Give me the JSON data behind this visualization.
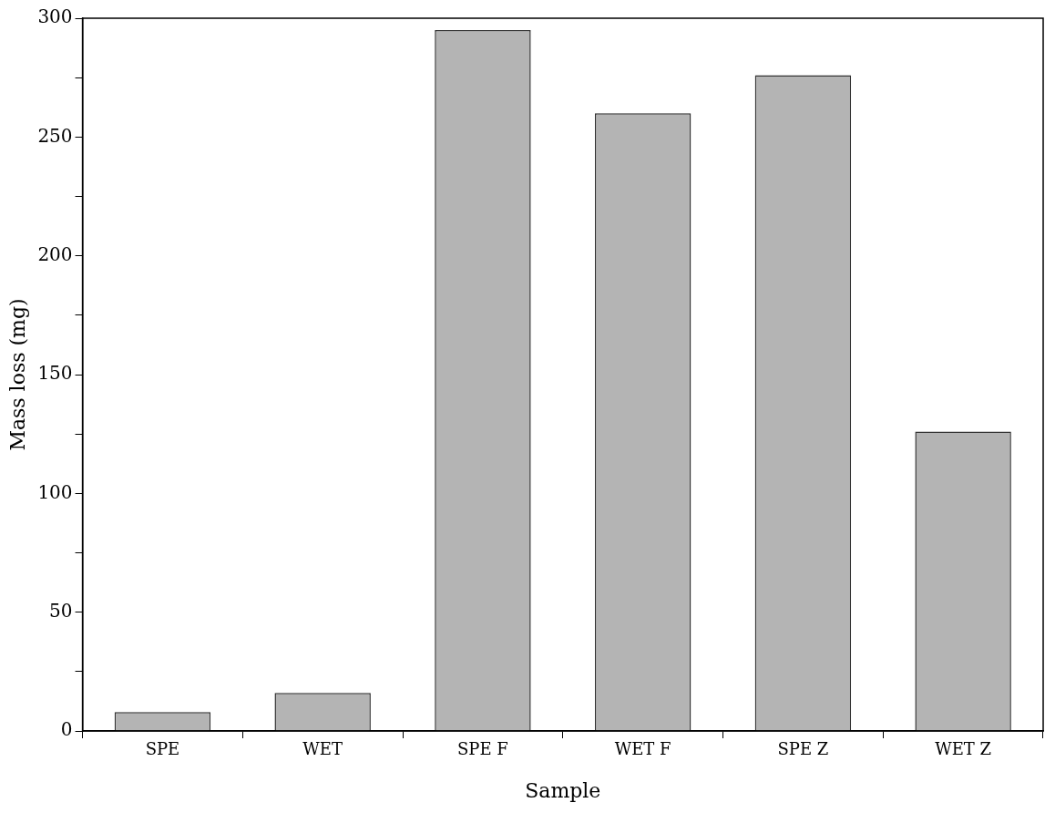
{
  "chart_data": {
    "type": "bar",
    "xlabel": "Sample",
    "ylabel": "Mass loss (mg)",
    "categories": [
      "SPE",
      "WET",
      "SPE F",
      "WET F",
      "SPE Z",
      "WET Z"
    ],
    "values": [
      8,
      16,
      295,
      260,
      276,
      126
    ],
    "color": "#b4b4b4",
    "ylim": [
      0,
      300
    ],
    "yticks": [
      0,
      {
        "value": 25,
        "label": null
      },
      50,
      {
        "value": 75,
        "label": null
      },
      100,
      {
        "value": 125,
        "label": null
      },
      150,
      {
        "value": 175,
        "label": null
      },
      200,
      {
        "value": 225,
        "label": null
      },
      250,
      {
        "value": 275,
        "label": null
      },
      300
    ],
    "grid": false,
    "legend": false
  }
}
